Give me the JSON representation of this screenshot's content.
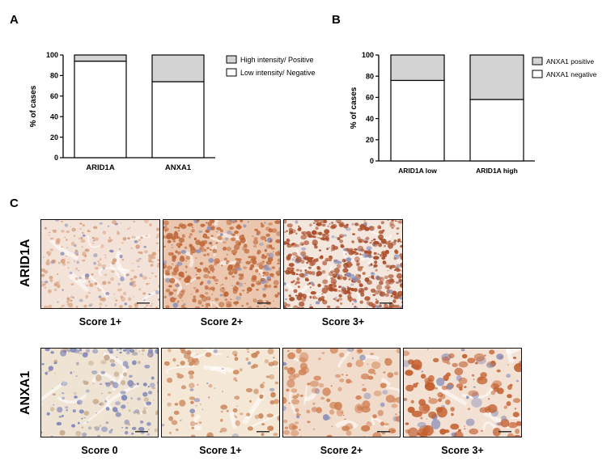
{
  "panels": {
    "a": "A",
    "b": "B",
    "c": "C"
  },
  "chart_data": [
    {
      "type": "bar",
      "stacked": true,
      "categories": [
        "ARID1A",
        "ANXA1"
      ],
      "series": [
        {
          "name": "High intensity/ Positive",
          "values": [
            6,
            26
          ],
          "color": "#d3d3d3"
        },
        {
          "name": "Low intensity/ Negative",
          "values": [
            94,
            74
          ],
          "color": "#ffffff"
        }
      ],
      "ylabel": "% of cases",
      "ylim": [
        0,
        100
      ],
      "yticks": [
        "0",
        "20",
        "40",
        "60",
        "80",
        "100"
      ],
      "legend": "right",
      "grid": false
    },
    {
      "type": "bar",
      "stacked": true,
      "categories": [
        "ARID1A low",
        "ARID1A high"
      ],
      "series": [
        {
          "name": "ANXA1 positive",
          "values": [
            24,
            42
          ],
          "color": "#d3d3d3"
        },
        {
          "name": "ANXA1 negative",
          "values": [
            76,
            58
          ],
          "color": "#ffffff"
        }
      ],
      "ylabel": "% of cases",
      "ylim": [
        0,
        100
      ],
      "yticks": [
        "0",
        "20",
        "40",
        "60",
        "80",
        "100"
      ],
      "legend": "right",
      "grid": false
    }
  ],
  "ihc": {
    "arid1a": {
      "label": "ARID1A",
      "scores": [
        "Score 1+",
        "Score 2+",
        "Score 3+"
      ]
    },
    "anxa1": {
      "label": "ANXA1",
      "scores": [
        "Score 0",
        "Score 1+",
        "Score 2+",
        "Score 3+"
      ]
    }
  }
}
